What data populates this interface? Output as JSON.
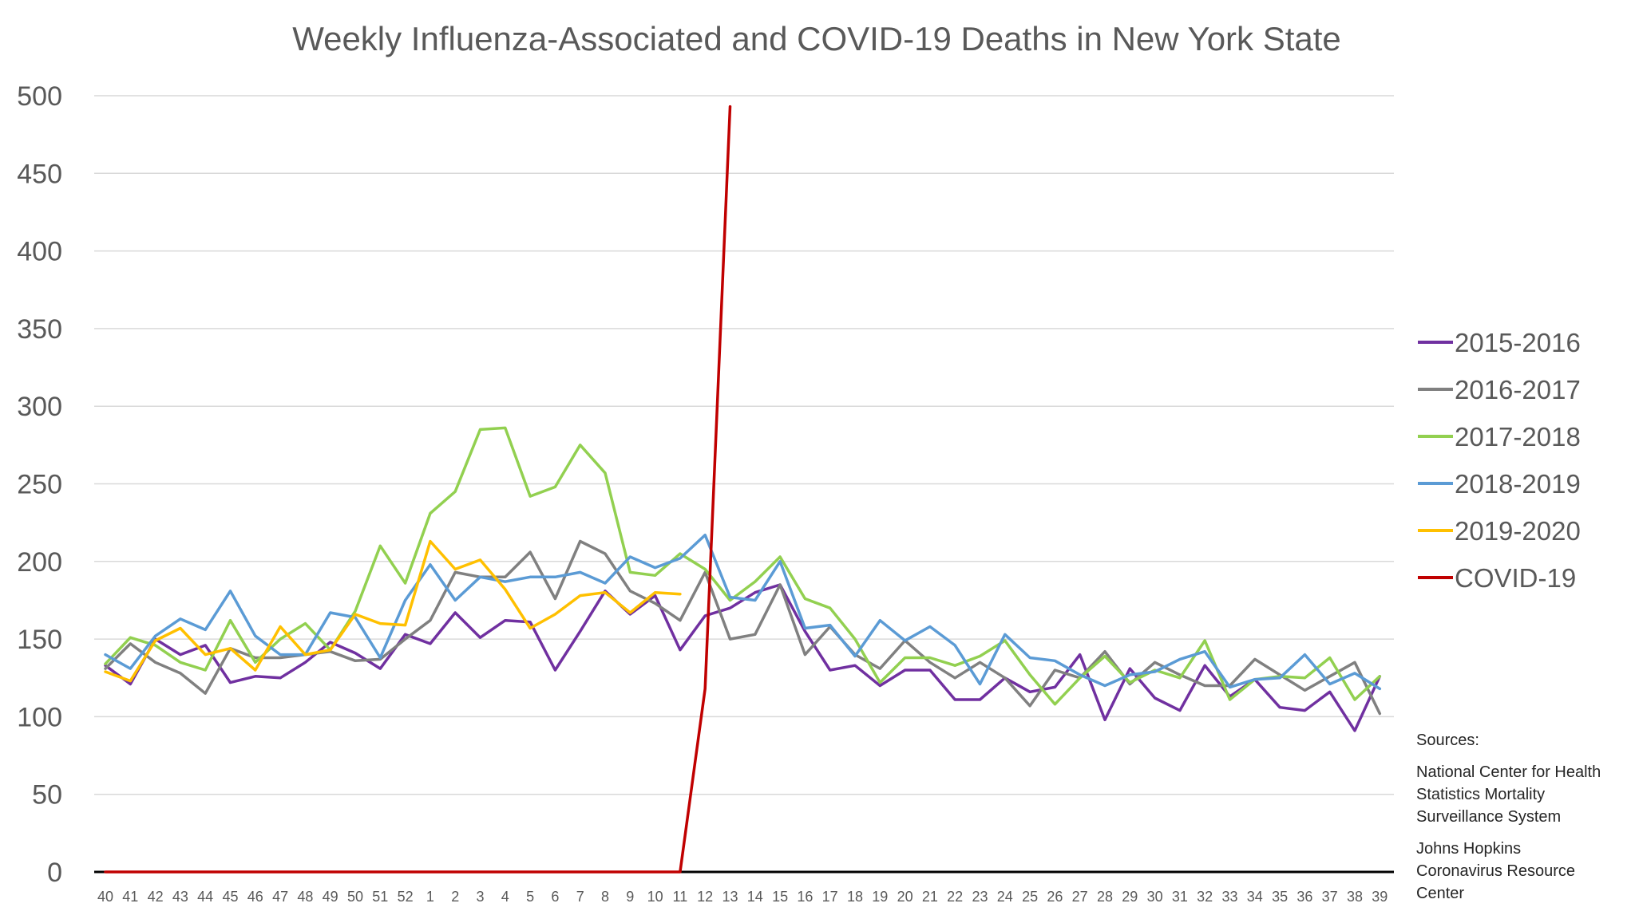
{
  "chart_data": {
    "type": "line",
    "title": "Weekly Influenza-Associated and COVID-19 Deaths in New York State",
    "xlabel": "",
    "ylabel": "",
    "ylim": [
      0,
      500
    ],
    "yticks": [
      "0",
      "50",
      "100",
      "150",
      "200",
      "250",
      "300",
      "350",
      "400",
      "450",
      "500"
    ],
    "categories": [
      "40",
      "41",
      "42",
      "43",
      "44",
      "45",
      "46",
      "47",
      "48",
      "49",
      "50",
      "51",
      "52",
      "1",
      "2",
      "3",
      "4",
      "5",
      "6",
      "7",
      "8",
      "9",
      "10",
      "11",
      "12",
      "13",
      "14",
      "15",
      "16",
      "17",
      "18",
      "19",
      "20",
      "21",
      "22",
      "23",
      "24",
      "25",
      "26",
      "27",
      "28",
      "29",
      "30",
      "31",
      "32",
      "33",
      "34",
      "35",
      "36",
      "37",
      "38",
      "39"
    ],
    "legend_position": "right",
    "grid": true,
    "series": [
      {
        "name": "2015-2016",
        "color": "#7030a0",
        "values": [
          133,
          121,
          150,
          140,
          146,
          122,
          126,
          125,
          135,
          148,
          141,
          131,
          153,
          147,
          167,
          151,
          162,
          161,
          130,
          155,
          181,
          166,
          178,
          143,
          165,
          170,
          180,
          185,
          155,
          130,
          133,
          120,
          130,
          130,
          111,
          111,
          125,
          116,
          119,
          140,
          98,
          131,
          112,
          104,
          133,
          113,
          124,
          106,
          104,
          116,
          91,
          126
        ]
      },
      {
        "name": "2016-2017",
        "color": "#808080",
        "values": [
          131,
          147,
          135,
          128,
          115,
          144,
          138,
          138,
          140,
          142,
          136,
          137,
          150,
          162,
          193,
          190,
          190,
          206,
          176,
          213,
          205,
          181,
          173,
          162,
          193,
          150,
          153,
          185,
          140,
          158,
          140,
          131,
          149,
          135,
          125,
          135,
          125,
          107,
          130,
          125,
          142,
          121,
          135,
          127,
          120,
          120,
          137,
          127,
          117,
          126,
          135,
          102
        ]
      },
      {
        "name": "2017-2018",
        "color": "#92d050",
        "values": [
          134,
          151,
          146,
          135,
          130,
          162,
          135,
          150,
          160,
          143,
          168,
          210,
          186,
          231,
          245,
          285,
          286,
          242,
          248,
          275,
          257,
          193,
          191,
          205,
          195,
          175,
          187,
          203,
          176,
          170,
          150,
          122,
          138,
          138,
          133,
          139,
          149,
          127,
          108,
          125,
          139,
          122,
          130,
          125,
          149,
          111,
          124,
          126,
          125,
          138,
          111,
          126
        ]
      },
      {
        "name": "2018-2019",
        "color": "#5b9bd5",
        "values": [
          140,
          131,
          152,
          163,
          156,
          181,
          152,
          140,
          140,
          167,
          164,
          138,
          175,
          198,
          175,
          190,
          187,
          190,
          190,
          193,
          186,
          203,
          196,
          202,
          217,
          177,
          175,
          200,
          157,
          159,
          139,
          162,
          149,
          158,
          146,
          121,
          153,
          138,
          136,
          127,
          120,
          127,
          129,
          137,
          142,
          119,
          124,
          125,
          140,
          121,
          128,
          118
        ]
      },
      {
        "name": "2019-2020",
        "color": "#ffc000",
        "values": [
          129,
          123,
          149,
          157,
          140,
          144,
          130,
          158,
          140,
          143,
          166,
          160,
          159,
          213,
          195,
          201,
          182,
          157,
          166,
          178,
          180,
          167,
          180,
          179,
          null,
          null,
          null,
          null,
          null,
          null,
          null,
          null,
          null,
          null,
          null,
          null,
          null,
          null,
          null,
          null,
          null,
          null,
          null,
          null,
          null,
          null,
          null,
          null,
          null,
          null,
          null,
          null
        ]
      },
      {
        "name": "COVID-19",
        "color": "#c00000",
        "values": [
          0,
          0,
          0,
          0,
          0,
          0,
          0,
          0,
          0,
          0,
          0,
          0,
          0,
          0,
          0,
          0,
          0,
          0,
          0,
          0,
          0,
          0,
          0,
          0,
          118,
          493,
          null,
          null,
          null,
          null,
          null,
          null,
          null,
          null,
          null,
          null,
          null,
          null,
          null,
          null,
          null,
          null,
          null,
          null,
          null,
          null,
          null,
          null,
          null,
          null,
          null,
          null
        ]
      }
    ]
  },
  "sources": {
    "heading": "Sources:",
    "source_1": [
      "National Center for Health",
      "Statistics Mortality",
      "Surveillance System"
    ],
    "source_2": [
      "Johns Hopkins",
      "Coronavirus Resource",
      "Center"
    ]
  }
}
